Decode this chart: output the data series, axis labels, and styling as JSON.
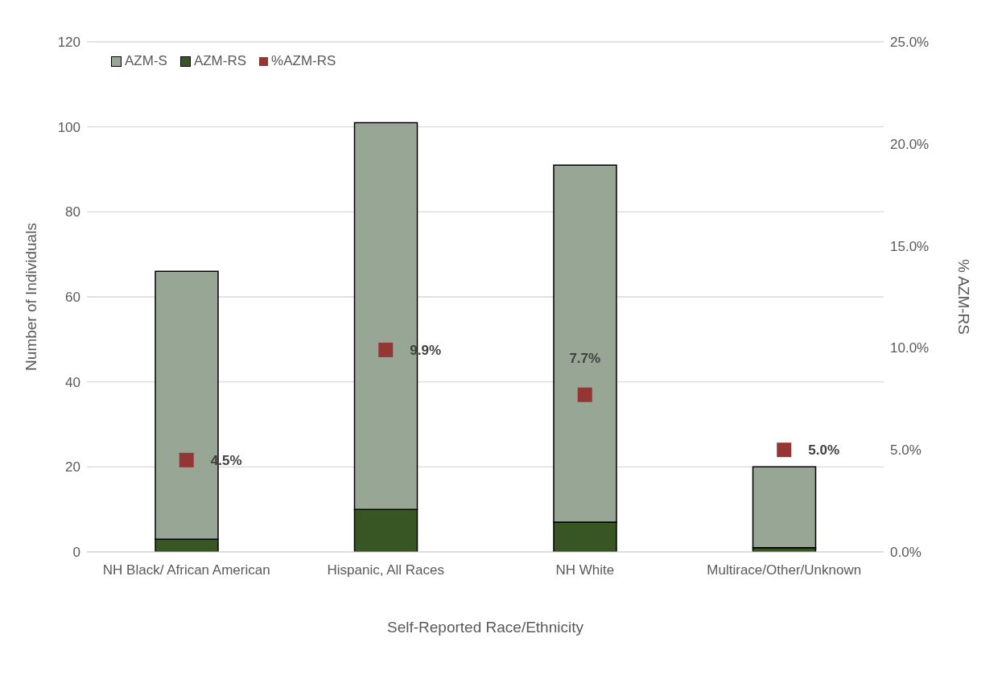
{
  "chart_data": {
    "type": "bar",
    "stacked": true,
    "xlabel": "Self-Reported Race/Ethnicity",
    "ylabel": "Number of Individuals",
    "y2label": "% AZM-RS",
    "categories": [
      "NH Black/ African American",
      "Hispanic, All Races",
      "NH White",
      "Multirace/Other/Unknown"
    ],
    "series": [
      {
        "name": "AZM-RS",
        "color": "#375623",
        "values": [
          3,
          10,
          7,
          1
        ]
      },
      {
        "name": "AZM-S",
        "color": "#98a695",
        "values": [
          63,
          91,
          84,
          19
        ]
      },
      {
        "name": "%AZM-RS",
        "type": "scatter",
        "axis": "y2",
        "marker": "square",
        "color": "#943634",
        "values": [
          4.5,
          9.9,
          7.7,
          5.0
        ],
        "value_labels": [
          "4.5%",
          "9.9%",
          "7.7%",
          "5.0%"
        ]
      }
    ],
    "ylim": [
      0,
      120
    ],
    "yticks": [
      0,
      20,
      40,
      60,
      80,
      100,
      120
    ],
    "y2lim": [
      0,
      25
    ],
    "y2ticks": [
      {
        "value": 0,
        "label": "0.0%"
      },
      {
        "value": 5,
        "label": "5.0%"
      },
      {
        "value": 10,
        "label": "10.0%"
      },
      {
        "value": 15,
        "label": "15.0%"
      },
      {
        "value": 20,
        "label": "20.0%"
      },
      {
        "value": 25,
        "label": "25.0%"
      }
    ],
    "grid": "y",
    "legend": "top left"
  }
}
